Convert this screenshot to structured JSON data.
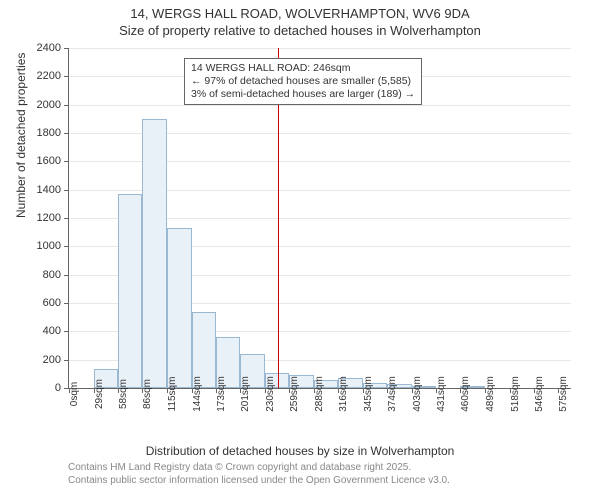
{
  "title": {
    "line1": "14, WERGS HALL ROAD, WOLVERHAMPTON, WV6 9DA",
    "line2": "Size of property relative to detached houses in Wolverhampton"
  },
  "chart": {
    "type": "histogram",
    "background_color": "#ffffff",
    "grid_color": "#e8e8e8",
    "axis_color": "#666666",
    "bar_fill": "#e8f0f8",
    "bar_border": "#9bb8d3",
    "y": {
      "min": 0,
      "max": 2400,
      "step": 200,
      "label": "Number of detached properties",
      "label_fontsize": 12
    },
    "x": {
      "min": 0,
      "max": 590,
      "label": "Distribution of detached houses by size in Wolverhampton",
      "label_fontsize": 12,
      "ticks": [
        0,
        29,
        58,
        86,
        115,
        144,
        173,
        201,
        230,
        259,
        288,
        316,
        345,
        374,
        403,
        431,
        460,
        489,
        518,
        546,
        575
      ],
      "tick_unit": "sqm"
    },
    "bins": [
      {
        "start": 0,
        "end": 29,
        "count": 0
      },
      {
        "start": 29,
        "end": 58,
        "count": 135
      },
      {
        "start": 58,
        "end": 86,
        "count": 1370
      },
      {
        "start": 86,
        "end": 115,
        "count": 1900
      },
      {
        "start": 115,
        "end": 144,
        "count": 1130
      },
      {
        "start": 144,
        "end": 173,
        "count": 540
      },
      {
        "start": 173,
        "end": 201,
        "count": 360
      },
      {
        "start": 201,
        "end": 230,
        "count": 240
      },
      {
        "start": 230,
        "end": 259,
        "count": 105
      },
      {
        "start": 259,
        "end": 288,
        "count": 95
      },
      {
        "start": 288,
        "end": 316,
        "count": 60
      },
      {
        "start": 316,
        "end": 345,
        "count": 70
      },
      {
        "start": 345,
        "end": 374,
        "count": 35
      },
      {
        "start": 374,
        "end": 403,
        "count": 25
      },
      {
        "start": 403,
        "end": 431,
        "count": 10
      },
      {
        "start": 431,
        "end": 460,
        "count": 0
      },
      {
        "start": 460,
        "end": 489,
        "count": 5
      },
      {
        "start": 489,
        "end": 518,
        "count": 0
      },
      {
        "start": 518,
        "end": 546,
        "count": 0
      },
      {
        "start": 546,
        "end": 575,
        "count": 0
      }
    ],
    "marker": {
      "value": 246,
      "color": "#cc0000",
      "width": 1
    },
    "annotation": {
      "line1": "14 WERGS HALL ROAD: 246sqm",
      "line2": "← 97% of detached houses are smaller (5,585)",
      "line3": "3% of semi-detached houses are larger (189) →",
      "border_color": "#666666",
      "bg_color": "#ffffff",
      "fontsize": 10.5
    }
  },
  "footer": {
    "line1": "Contains HM Land Registry data © Crown copyright and database right 2025.",
    "line2": "Contains public sector information licensed under the Open Government Licence v3.0."
  }
}
